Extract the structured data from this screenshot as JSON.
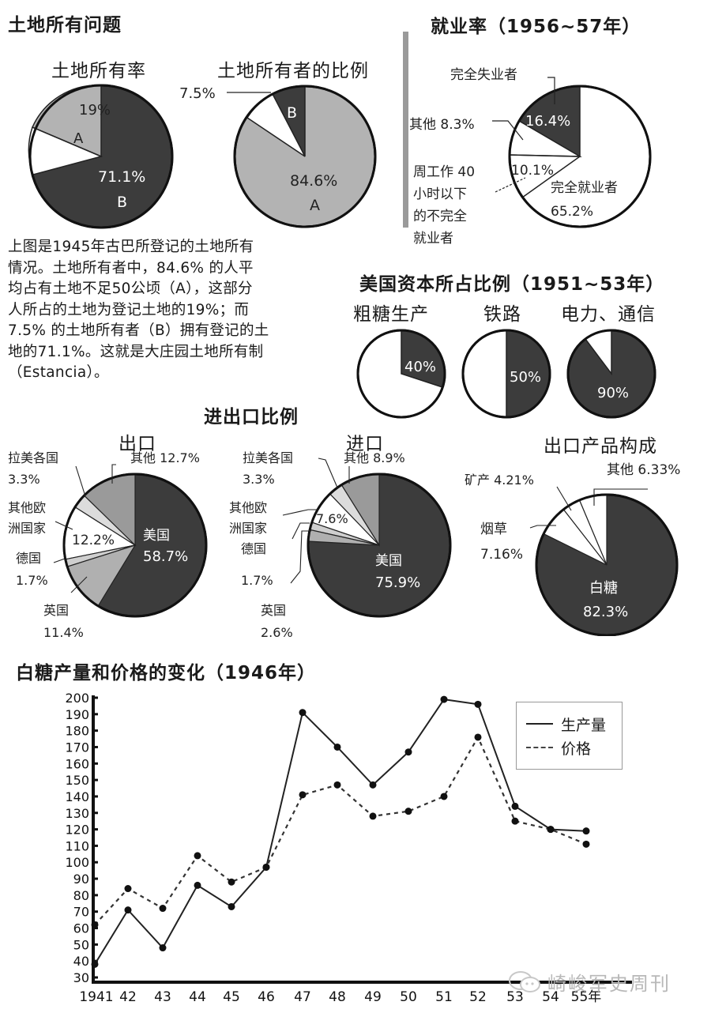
{
  "sections": {
    "land": {
      "title": "土地所有问题",
      "pie1_title": "土地所有率",
      "pie2_title": "土地所有者的比例",
      "pie1_labels": {
        "a_pct": "19%",
        "a": "A",
        "b_pct": "71.1%",
        "b": "B"
      },
      "pie2_labels": {
        "b_callout": "7.5%",
        "b": "B",
        "a_pct": "84.6%",
        "a": "A"
      },
      "paragraph": [
        "上图是1945年古巴所登记的土地所有",
        "情况。土地所有者中，84.6% 的人平",
        "均占有土地不足50公顷（A），这部分",
        "人所占的土地为登记土地的19%；而",
        "7.5% 的土地所有者（B）拥有登记的土",
        "地的71.1%。这就是大庄园土地所有制",
        "（Estancia）。"
      ]
    },
    "employment": {
      "title": "就业率（1956~57年）",
      "labels": {
        "unemployed": "完全失业者",
        "unemployed_pct": "16.4%",
        "other": "其他 8.3%",
        "under_pct": "10.1%",
        "under": [
          "周工作 40",
          "小时以下",
          "的不完全",
          "就业者"
        ],
        "employed": "完全就业者",
        "employed_pct": "65.2%"
      }
    },
    "us_capital": {
      "title": "美国资本所占比例（1951~53年）",
      "items": [
        {
          "label": "粗糖生产",
          "pct": "40%"
        },
        {
          "label": "铁路",
          "pct": "50%"
        },
        {
          "label": "电力、通信",
          "pct": "90%"
        }
      ]
    },
    "trade": {
      "title": "进出口比例",
      "export": {
        "title": "出口",
        "labels": {
          "latam": [
            "拉美各国",
            "3.3%"
          ],
          "other": "其他 12.7%",
          "other_eu": [
            "其他欧",
            "洲国家"
          ],
          "other_eu_pct": "12.2%",
          "germany": [
            "德国",
            "1.7%"
          ],
          "uk": [
            "英国",
            "11.4%"
          ],
          "usa": [
            "美国",
            "58.7%"
          ]
        }
      },
      "import": {
        "title": "进口",
        "labels": {
          "latam": [
            "拉美各国",
            "3.3%"
          ],
          "other": "其他 8.9%",
          "other_eu": [
            "其他欧",
            "洲国家"
          ],
          "other_eu_pct": "7.6%",
          "germany": [
            "德国",
            "1.7%"
          ],
          "uk": [
            "英国",
            "2.6%"
          ],
          "usa": [
            "美国",
            "75.9%"
          ]
        }
      }
    },
    "export_products": {
      "title": "出口产品构成",
      "labels": {
        "other": "其他 6.33%",
        "mineral": "矿产 4.21%",
        "tobacco": [
          "烟草",
          "7.16%"
        ],
        "sugar": [
          "白糖",
          "82.3%"
        ]
      }
    },
    "sugar": {
      "title": "白糖产量和价格的变化（1946年）",
      "legend": {
        "production": "生产量",
        "price": "价格"
      },
      "x_labels": [
        "1941",
        "42",
        "43",
        "44",
        "45",
        "46",
        "47",
        "48",
        "49",
        "50",
        "51",
        "52",
        "53",
        "54",
        "55年"
      ],
      "y_labels": [
        "200",
        "190",
        "180",
        "170",
        "160",
        "150",
        "140",
        "130",
        "120",
        "110",
        "100",
        "90",
        "80",
        "70",
        "60",
        "50",
        "40",
        "30"
      ]
    },
    "watermark": "崎峻军史周刊"
  },
  "chart_data": [
    {
      "type": "pie",
      "title": "土地所有率",
      "categories": [
        "A",
        "B",
        "Other"
      ],
      "values": [
        19,
        71.1,
        9.9
      ],
      "colors": [
        "#b3b3b3",
        "#3c3c3c",
        "#ffffff"
      ]
    },
    {
      "type": "pie",
      "title": "土地所有者的比例",
      "categories": [
        "B",
        "Other",
        "A"
      ],
      "values": [
        7.5,
        7.9,
        84.6
      ],
      "colors": [
        "#3c3c3c",
        "#ffffff",
        "#b3b3b3"
      ]
    },
    {
      "type": "pie",
      "title": "就业率（1956~57年）",
      "categories": [
        "完全失业者",
        "其他",
        "周工作40小时以下的不完全就业者",
        "完全就业者"
      ],
      "values": [
        16.4,
        8.3,
        10.1,
        65.2
      ]
    },
    {
      "type": "pie",
      "title": "美国资本所占比例（1951~53年）- 粗糖生产",
      "categories": [
        "美国资本",
        "其他"
      ],
      "values": [
        40,
        60
      ]
    },
    {
      "type": "pie",
      "title": "美国资本所占比例（1951~53年）- 铁路",
      "categories": [
        "美国资本",
        "其他"
      ],
      "values": [
        50,
        50
      ]
    },
    {
      "type": "pie",
      "title": "美国资本所占比例（1951~53年）- 电力、通信",
      "categories": [
        "美国资本",
        "其他"
      ],
      "values": [
        90,
        10
      ]
    },
    {
      "type": "pie",
      "title": "进出口比例 - 出口",
      "categories": [
        "美国",
        "英国",
        "德国",
        "其他欧洲国家",
        "拉美各国",
        "其他"
      ],
      "values": [
        58.7,
        11.4,
        1.7,
        12.2,
        3.3,
        12.7
      ]
    },
    {
      "type": "pie",
      "title": "进出口比例 - 进口",
      "categories": [
        "美国",
        "英国",
        "德国",
        "其他欧洲国家",
        "拉美各国",
        "其他"
      ],
      "values": [
        75.9,
        2.6,
        1.7,
        7.6,
        3.3,
        8.9
      ]
    },
    {
      "type": "pie",
      "title": "出口产品构成",
      "categories": [
        "白糖",
        "烟草",
        "矿产",
        "其他"
      ],
      "values": [
        82.3,
        7.16,
        4.21,
        6.33
      ]
    },
    {
      "type": "line",
      "title": "白糖产量和价格的变化（1946年）",
      "x": [
        "1941",
        "42",
        "43",
        "44",
        "45",
        "46",
        "47",
        "48",
        "49",
        "50",
        "51",
        "52",
        "53",
        "54",
        "55"
      ],
      "series": [
        {
          "name": "生产量",
          "style": "solid",
          "values": [
            38,
            71,
            48,
            86,
            73,
            97,
            191,
            170,
            147,
            167,
            199,
            196,
            134,
            120,
            119
          ]
        },
        {
          "name": "价格",
          "style": "dashed",
          "values": [
            62,
            84,
            72,
            104,
            88,
            97,
            141,
            147,
            128,
            131,
            140,
            176,
            125,
            120,
            111
          ]
        }
      ],
      "xlabel": "年",
      "ylabel": "",
      "ylim": [
        30,
        200
      ],
      "yticks_step": 10,
      "grid": false,
      "legend_position": "top-right"
    }
  ]
}
